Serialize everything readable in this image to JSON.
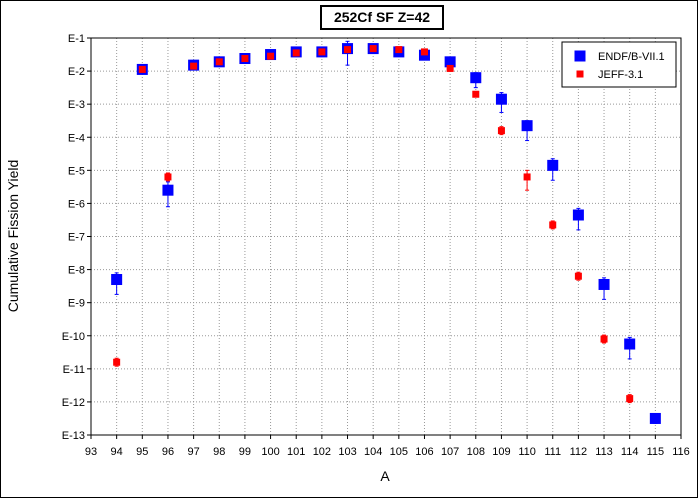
{
  "chart_data": {
    "type": "scatter",
    "title": "252Cf SF Z=42",
    "xlabel": "A",
    "ylabel": "Cumulative Fission Yield",
    "xlim": [
      93,
      116
    ],
    "ylim_log10": [
      -13,
      -1
    ],
    "x_ticks": [
      "93",
      "94",
      "95",
      "96",
      "97",
      "98",
      "99",
      "100",
      "101",
      "102",
      "103",
      "104",
      "105",
      "106",
      "107",
      "108",
      "109",
      "110",
      "111",
      "112",
      "113",
      "114",
      "115",
      "116"
    ],
    "y_ticks": [
      "E-1",
      "E-2",
      "E-3",
      "E-4",
      "E-5",
      "E-6",
      "E-7",
      "E-8",
      "E-9",
      "E-10",
      "E-11",
      "E-12",
      "E-13"
    ],
    "grid": true,
    "legend_position": "top-right",
    "series": [
      {
        "name": "ENDF/B-VII.1",
        "color": "#0000ff",
        "marker": "square",
        "points": [
          {
            "x": 94,
            "log10y": -8.3,
            "err_hi": 0.2,
            "err_lo": 0.45
          },
          {
            "x": 95,
            "log10y": -1.95,
            "err_hi": 0.05,
            "err_lo": 0.05
          },
          {
            "x": 96,
            "log10y": -5.6,
            "err_hi": 0.25,
            "err_lo": 0.5
          },
          {
            "x": 97,
            "log10y": -1.82,
            "err_hi": 0.05,
            "err_lo": 0.05
          },
          {
            "x": 98,
            "log10y": -1.72,
            "err_hi": 0.05,
            "err_lo": 0.05
          },
          {
            "x": 99,
            "log10y": -1.62,
            "err_hi": 0.05,
            "err_lo": 0.05
          },
          {
            "x": 100,
            "log10y": -1.5,
            "err_hi": 0.05,
            "err_lo": 0.05
          },
          {
            "x": 101,
            "log10y": -1.42,
            "err_hi": 0.05,
            "err_lo": 0.05
          },
          {
            "x": 102,
            "log10y": -1.42,
            "err_hi": 0.05,
            "err_lo": 0.05
          },
          {
            "x": 103,
            "log10y": -1.32,
            "err_hi": 0.22,
            "err_lo": 0.5
          },
          {
            "x": 104,
            "log10y": -1.32,
            "err_hi": 0.08,
            "err_lo": 0.08
          },
          {
            "x": 105,
            "log10y": -1.42,
            "err_hi": 0.05,
            "err_lo": 0.05
          },
          {
            "x": 106,
            "log10y": -1.52,
            "err_hi": 0.05,
            "err_lo": 0.05
          },
          {
            "x": 107,
            "log10y": -1.72,
            "err_hi": 0.05,
            "err_lo": 0.05
          },
          {
            "x": 108,
            "log10y": -2.2,
            "err_hi": 0.15,
            "err_lo": 0.3
          },
          {
            "x": 109,
            "log10y": -2.85,
            "err_hi": 0.2,
            "err_lo": 0.4
          },
          {
            "x": 110,
            "log10y": -3.65,
            "err_hi": 0.15,
            "err_lo": 0.45
          },
          {
            "x": 111,
            "log10y": -4.85,
            "err_hi": 0.2,
            "err_lo": 0.45
          },
          {
            "x": 112,
            "log10y": -6.35,
            "err_hi": 0.2,
            "err_lo": 0.45
          },
          {
            "x": 113,
            "log10y": -8.45,
            "err_hi": 0.2,
            "err_lo": 0.45
          },
          {
            "x": 114,
            "log10y": -10.25,
            "err_hi": 0.2,
            "err_lo": 0.45
          },
          {
            "x": 115,
            "log10y": -12.5,
            "err_hi": 0.15,
            "err_lo": 0.15
          }
        ]
      },
      {
        "name": "JEFF-3.1",
        "color": "#ff0000",
        "marker": "square",
        "points": [
          {
            "x": 94,
            "log10y": -10.8,
            "err_hi": 0.12,
            "err_lo": 0.12
          },
          {
            "x": 95,
            "log10y": -1.95,
            "err_hi": 0.05,
            "err_lo": 0.05
          },
          {
            "x": 96,
            "log10y": -5.2,
            "err_hi": 0.12,
            "err_lo": 0.12
          },
          {
            "x": 97,
            "log10y": -1.85,
            "err_hi": 0.05,
            "err_lo": 0.05
          },
          {
            "x": 98,
            "log10y": -1.72,
            "err_hi": 0.05,
            "err_lo": 0.05
          },
          {
            "x": 99,
            "log10y": -1.62,
            "err_hi": 0.05,
            "err_lo": 0.05
          },
          {
            "x": 100,
            "log10y": -1.55,
            "err_hi": 0.05,
            "err_lo": 0.05
          },
          {
            "x": 101,
            "log10y": -1.45,
            "err_hi": 0.05,
            "err_lo": 0.05
          },
          {
            "x": 102,
            "log10y": -1.42,
            "err_hi": 0.05,
            "err_lo": 0.05
          },
          {
            "x": 103,
            "log10y": -1.35,
            "err_hi": 0.05,
            "err_lo": 0.05
          },
          {
            "x": 104,
            "log10y": -1.32,
            "err_hi": 0.05,
            "err_lo": 0.05
          },
          {
            "x": 105,
            "log10y": -1.35,
            "err_hi": 0.05,
            "err_lo": 0.05
          },
          {
            "x": 106,
            "log10y": -1.42,
            "err_hi": 0.05,
            "err_lo": 0.05
          },
          {
            "x": 107,
            "log10y": -1.92,
            "err_hi": 0.05,
            "err_lo": 0.05
          },
          {
            "x": 108,
            "log10y": -2.7,
            "err_hi": 0.08,
            "err_lo": 0.08
          },
          {
            "x": 109,
            "log10y": -3.8,
            "err_hi": 0.12,
            "err_lo": 0.12
          },
          {
            "x": 110,
            "log10y": -5.2,
            "err_hi": 0.2,
            "err_lo": 0.4
          },
          {
            "x": 111,
            "log10y": -6.65,
            "err_hi": 0.12,
            "err_lo": 0.12
          },
          {
            "x": 112,
            "log10y": -8.2,
            "err_hi": 0.12,
            "err_lo": 0.12
          },
          {
            "x": 113,
            "log10y": -10.1,
            "err_hi": 0.12,
            "err_lo": 0.12
          },
          {
            "x": 114,
            "log10y": -11.9,
            "err_hi": 0.12,
            "err_lo": 0.12
          }
        ]
      }
    ]
  }
}
